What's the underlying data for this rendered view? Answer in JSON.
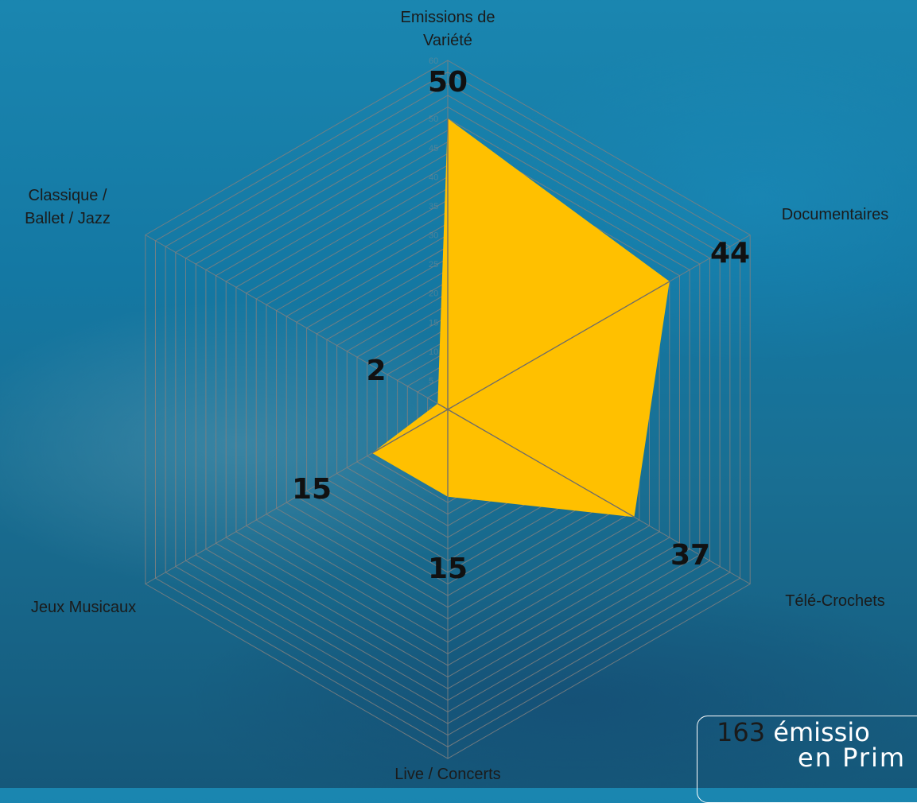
{
  "chart_data": {
    "type": "radar",
    "categories": [
      "Emissions de\nVariété",
      "Documentaires",
      "Télé-Crochets",
      "Live / Concerts",
      "Jeux Musicaux",
      "Classique /\nBallet / Jazz"
    ],
    "values": [
      50,
      44,
      37,
      15,
      15,
      2
    ],
    "value_labels": [
      "50",
      "44",
      "37",
      "15",
      "15",
      "2"
    ],
    "ticks": [
      "0",
      "5",
      "10",
      "15",
      "20",
      "25",
      "30",
      "35",
      "40",
      "45",
      "50",
      "55",
      "60"
    ],
    "rlim": [
      0,
      60
    ],
    "grid": true,
    "colors": {
      "fill": "#FFC000",
      "grid": "#808080"
    }
  },
  "summary": {
    "count": "163",
    "line1_text": "émissio",
    "line2_text": "en Prim"
  }
}
